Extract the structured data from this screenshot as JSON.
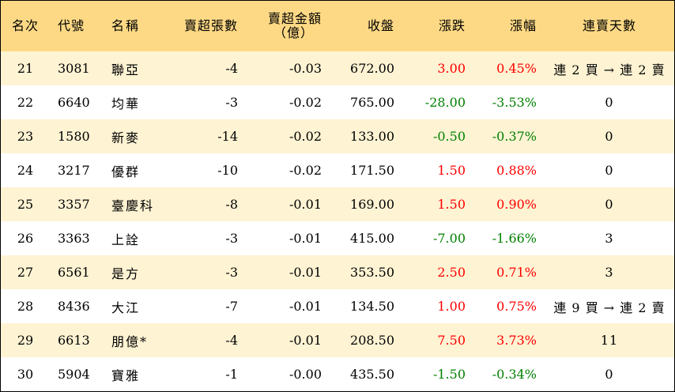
{
  "headers": {
    "rank": "名次",
    "code": "代號",
    "name": "名稱",
    "sell_lots": "賣超張數",
    "sell_amount_line1": "賣超金額",
    "sell_amount_line2": "（億）",
    "close": "收盤",
    "change": "漲跌",
    "change_pct": "漲幅",
    "streak": "連賣天數"
  },
  "rows": [
    {
      "rank": "21",
      "code": "3081",
      "name": "聯亞",
      "sell_lots": "-4",
      "sell_amount": "-0.03",
      "close": "672.00",
      "change": "3.00",
      "change_pct": "0.45%",
      "direction": "up",
      "streak": "連 2 買 → 連 2 賣"
    },
    {
      "rank": "22",
      "code": "6640",
      "name": "均華",
      "sell_lots": "-3",
      "sell_amount": "-0.02",
      "close": "765.00",
      "change": "-28.00",
      "change_pct": "-3.53%",
      "direction": "down",
      "streak": "0"
    },
    {
      "rank": "23",
      "code": "1580",
      "name": "新麥",
      "sell_lots": "-14",
      "sell_amount": "-0.02",
      "close": "133.00",
      "change": "-0.50",
      "change_pct": "-0.37%",
      "direction": "down",
      "streak": "0"
    },
    {
      "rank": "24",
      "code": "3217",
      "name": "優群",
      "sell_lots": "-10",
      "sell_amount": "-0.02",
      "close": "171.50",
      "change": "1.50",
      "change_pct": "0.88%",
      "direction": "up",
      "streak": "0"
    },
    {
      "rank": "25",
      "code": "3357",
      "name": "臺慶科",
      "sell_lots": "-8",
      "sell_amount": "-0.01",
      "close": "169.00",
      "change": "1.50",
      "change_pct": "0.90%",
      "direction": "up",
      "streak": "0"
    },
    {
      "rank": "26",
      "code": "3363",
      "name": "上詮",
      "sell_lots": "-3",
      "sell_amount": "-0.01",
      "close": "415.00",
      "change": "-7.00",
      "change_pct": "-1.66%",
      "direction": "down",
      "streak": "3"
    },
    {
      "rank": "27",
      "code": "6561",
      "name": "是方",
      "sell_lots": "-3",
      "sell_amount": "-0.01",
      "close": "353.50",
      "change": "2.50",
      "change_pct": "0.71%",
      "direction": "up",
      "streak": "3"
    },
    {
      "rank": "28",
      "code": "8436",
      "name": "大江",
      "sell_lots": "-7",
      "sell_amount": "-0.01",
      "close": "134.50",
      "change": "1.00",
      "change_pct": "0.75%",
      "direction": "up",
      "streak": "連 9 買 → 連 2 賣"
    },
    {
      "rank": "29",
      "code": "6613",
      "name": "朋億*",
      "sell_lots": "-4",
      "sell_amount": "-0.01",
      "close": "208.50",
      "change": "7.50",
      "change_pct": "3.73%",
      "direction": "up",
      "streak": "11"
    },
    {
      "rank": "30",
      "code": "5904",
      "name": "寶雅",
      "sell_lots": "-1",
      "sell_amount": "-0.00",
      "close": "435.50",
      "change": "-1.50",
      "change_pct": "-0.34%",
      "direction": "down",
      "streak": "0"
    }
  ],
  "colors": {
    "header_bg": "#fdd985",
    "row_odd_bg": "#fef3d3",
    "row_even_bg": "#ffffff",
    "up": "#ff0000",
    "down": "#008000"
  }
}
